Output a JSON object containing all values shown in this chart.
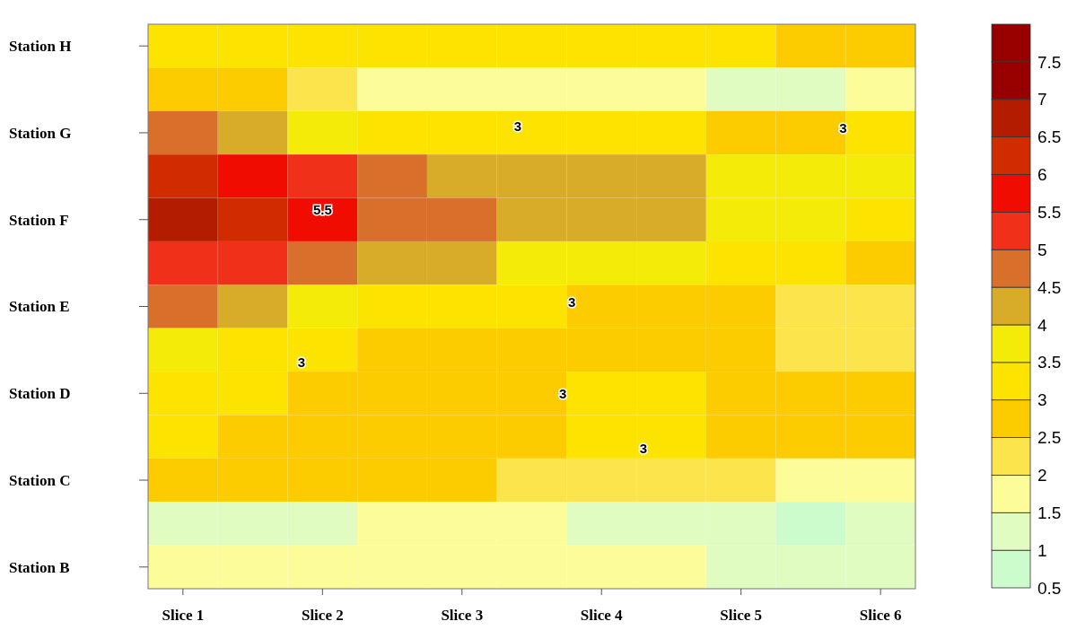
{
  "chart_data": {
    "type": "heatmap",
    "categories": [
      "Slice 1",
      null,
      "Slice 2",
      null,
      "Slice 3",
      null,
      "Slice 4",
      null,
      "Slice 5",
      null,
      "Slice 6"
    ],
    "y_categories": [
      "Station H",
      null,
      "Station G",
      null,
      "Station F",
      null,
      "Station E",
      null,
      "Station D",
      null,
      "Station C",
      null,
      "Station B"
    ],
    "cells": [
      [
        3.3,
        3.3,
        3.2,
        3.1,
        3.0,
        3.0,
        3.0,
        3.0,
        3.0,
        2.9,
        2.8
      ],
      [
        2.7,
        2.5,
        2.3,
        1.8,
        1.7,
        1.7,
        1.6,
        1.6,
        1.45,
        1.3,
        1.8
      ],
      [
        4.6,
        4.0,
        3.6,
        3.2,
        3.2,
        3.2,
        3.1,
        3.0,
        2.9,
        2.9,
        3.4
      ],
      [
        6.4,
        5.7,
        5.0,
        4.6,
        4.3,
        4.1,
        4.2,
        4.1,
        3.7,
        3.6,
        3.6
      ],
      [
        6.8,
        6.2,
        5.5,
        4.9,
        4.6,
        4.3,
        4.3,
        4.2,
        3.8,
        3.5,
        3.3
      ],
      [
        5.4,
        5.0,
        4.6,
        4.3,
        4.0,
        3.9,
        3.7,
        3.6,
        3.4,
        3.0,
        2.8
      ],
      [
        4.5,
        4.1,
        3.7,
        3.4,
        3.1,
        3.0,
        2.9,
        2.8,
        2.7,
        2.4,
        2.3
      ],
      [
        3.7,
        3.4,
        3.0,
        2.8,
        2.8,
        2.8,
        2.8,
        2.8,
        2.6,
        2.3,
        2.3
      ],
      [
        3.3,
        3.0,
        2.8,
        2.7,
        2.7,
        2.9,
        3.1,
        3.1,
        2.8,
        2.6,
        2.6
      ],
      [
        3.0,
        2.8,
        2.7,
        2.7,
        2.7,
        2.8,
        3.2,
        3.1,
        2.8,
        2.7,
        2.55
      ],
      [
        2.5,
        2.55,
        2.55,
        2.5,
        2.55,
        2.45,
        2.3,
        2.2,
        2.1,
        1.9,
        1.9
      ],
      [
        1.4,
        1.3,
        1.35,
        1.5,
        1.75,
        1.6,
        1.4,
        1.3,
        1.1,
        0.9,
        1.0
      ],
      [
        1.8,
        1.7,
        1.7,
        1.8,
        1.9,
        1.9,
        1.8,
        1.6,
        1.4,
        1.3,
        1.4
      ]
    ],
    "clim": [
      0.5,
      8
    ],
    "cticks": [
      0.5,
      1,
      1.5,
      2,
      2.5,
      3,
      3.5,
      4,
      4.5,
      5,
      5.5,
      6,
      6.5,
      7,
      7.5
    ],
    "colors": [
      "#ccfccc",
      "#e0fcc0",
      "#fcfc98",
      "#fce44c",
      "#fccc00",
      "#fce400",
      "#f4ec08",
      "#d8ac28",
      "#d8702c",
      "#f03018",
      "#f00c00",
      "#d02c00",
      "#b41c00",
      "#980000",
      "#980000"
    ],
    "annotations": [
      "3",
      "3",
      "3",
      "3",
      "3",
      "3",
      "5.5"
    ]
  }
}
